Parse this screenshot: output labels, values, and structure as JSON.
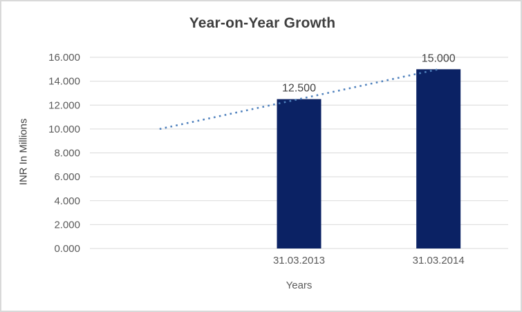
{
  "chart_data": {
    "type": "bar",
    "title": "Year-on-Year Growth",
    "xlabel": "Years",
    "ylabel": "INR In Millions",
    "categories": [
      "31.03.2013",
      "31.03.2014"
    ],
    "values": [
      12.5,
      15.0
    ],
    "value_labels": [
      "12.500",
      "15.000"
    ],
    "ylim": [
      0,
      16
    ],
    "y_ticks": [
      {
        "value": 0,
        "label": "0.000"
      },
      {
        "value": 2,
        "label": "2.000"
      },
      {
        "value": 4,
        "label": "4.000"
      },
      {
        "value": 6,
        "label": "6.000"
      },
      {
        "value": 8,
        "label": "8.000"
      },
      {
        "value": 10,
        "label": "10.000"
      },
      {
        "value": 12,
        "label": "12.000"
      },
      {
        "value": 14,
        "label": "14.000"
      },
      {
        "value": 16,
        "label": "16.000"
      }
    ],
    "grid": true,
    "legend": "none",
    "num_slots": 3,
    "bar_slots": [
      1,
      2
    ],
    "trendline": {
      "style": "dotted",
      "points": [
        {
          "slot": 0,
          "value": 10.0
        },
        {
          "slot": 2,
          "value": 15.0
        }
      ]
    },
    "colors": {
      "bar": "#0b2264",
      "trendline": "#4f81bd",
      "gridline": "#d9d9d9",
      "axis_line": "#d9d9d9",
      "title_text": "#3f3f3f",
      "tick_text": "#595959",
      "label_text": "#404040",
      "border": "#d9d9d9",
      "background": "#ffffff"
    }
  }
}
